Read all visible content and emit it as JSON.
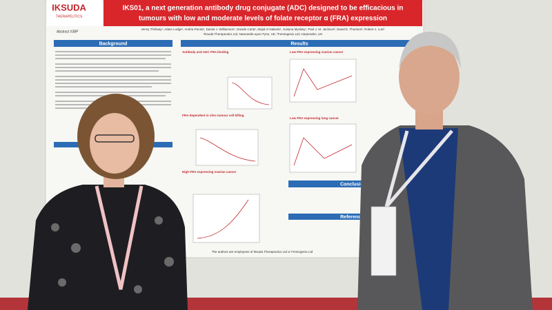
{
  "poster": {
    "logo": {
      "name": "IKSUDA",
      "tagline": "THERAPEUTICS"
    },
    "abstract": "Abstract #38P",
    "title_lines": [
      "IKS01, a next generation antibody drug conjugate (ADC) designed to be efficacious in",
      "tumours with low and moderate levels of folate receptor α (FRA) expression"
    ],
    "authors": "Jenny Thirlway¹, Adam Lodge¹, Andria Parola¹, Daniel J. Williamson¹, Davide Carta¹, Majid Al Nakeeb¹, Justyna Mysliwy¹, Paul J. M. Jackson², David E. Thurston², Robert J. Lutz¹",
    "affiliations": "¹Iksuda Therapeutics Ltd, Newcastle-upon-Tyne, UK; ²Femtogenix Ltd, Harpenden, UK",
    "sections": {
      "background": "Background",
      "results": "Results",
      "conclusion": "Conclusion",
      "references": "References"
    },
    "subheads": [
      "Antibody and ADC FRA binding",
      "Low FRA expressing ovarian cancer",
      "FRA-dependent in vitro tumour cell killing",
      "Low FRA expressing lung cancer",
      "High FRA expressing ovarian cancer"
    ],
    "footer": "The authors are employees of Iksuda Therapeutics Ltd or Femtogenix Ltd"
  }
}
